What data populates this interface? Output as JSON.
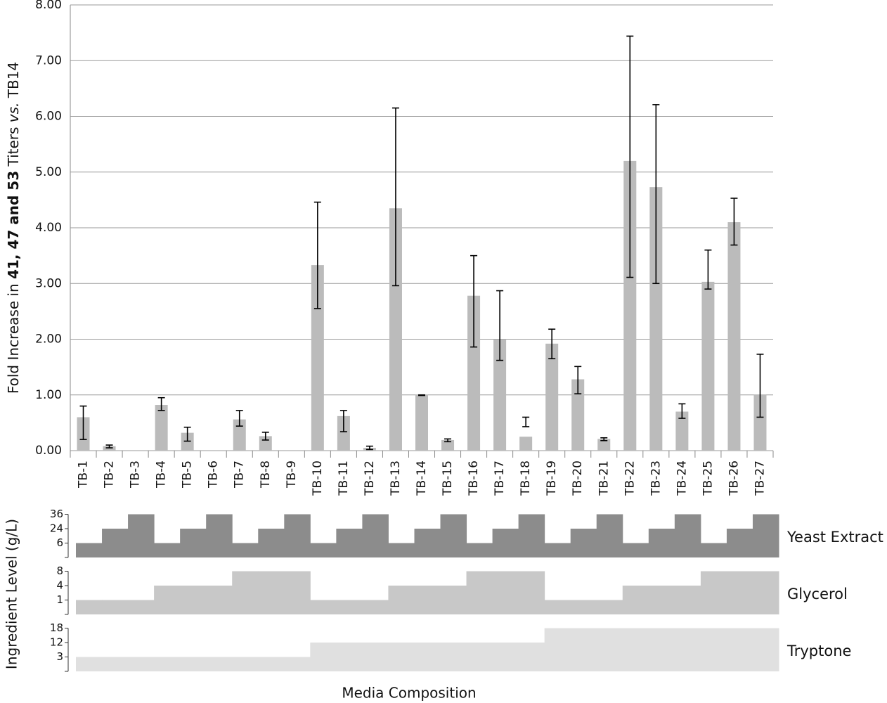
{
  "chart_data": {
    "type": "bar",
    "y_label_parts": [
      "Fold Increase in ",
      "41, 47 and 53",
      " Titers ",
      "vs.",
      " TB14"
    ],
    "x_label": "Media Composition",
    "categories": [
      "TB-1",
      "TB-2",
      "TB-3",
      "TB-4",
      "TB-5",
      "TB-6",
      "TB-7",
      "TB-8",
      "TB-9",
      "TB-10",
      "TB-11",
      "TB-12",
      "TB-13",
      "TB-14",
      "TB-15",
      "TB-16",
      "TB-17",
      "TB-18",
      "TB-19",
      "TB-20",
      "TB-21",
      "TB-22",
      "TB-23",
      "TB-24",
      "TB-25",
      "TB-26",
      "TB-27"
    ],
    "values": [
      0.6,
      0.08,
      0,
      0.82,
      0.32,
      0,
      0.56,
      0.26,
      0,
      3.33,
      0.62,
      0.05,
      4.35,
      1.0,
      0.19,
      2.78,
      2.0,
      0.25,
      1.92,
      1.28,
      0.21,
      5.2,
      4.73,
      0.7,
      3.03,
      4.1,
      1.0
    ],
    "err_low": [
      0.2,
      0.05,
      null,
      0.72,
      0.17,
      null,
      0.44,
      0.19,
      null,
      2.55,
      0.34,
      0.02,
      2.96,
      0.99,
      0.16,
      1.86,
      1.62,
      0.43,
      1.65,
      1.02,
      0.18,
      3.11,
      3.0,
      0.58,
      2.9,
      3.69,
      0.6
    ],
    "err_high": [
      0.8,
      0.1,
      null,
      0.95,
      0.42,
      null,
      0.72,
      0.33,
      null,
      4.46,
      0.72,
      0.08,
      6.15,
      1.0,
      0.21,
      3.5,
      2.87,
      0.6,
      2.18,
      1.51,
      0.23,
      7.44,
      6.21,
      0.84,
      3.6,
      4.53,
      1.73
    ],
    "color": "#bbbbbb",
    "error_color": "#000000",
    "ylim": [
      0,
      8
    ],
    "yticks": [
      {
        "value": 0,
        "label": "0.00"
      },
      {
        "value": 1,
        "label": "1.00"
      },
      {
        "value": 2,
        "label": "2.00"
      },
      {
        "value": 3,
        "label": "3.00"
      },
      {
        "value": 4,
        "label": "4.00"
      },
      {
        "value": 5,
        "label": "5.00"
      },
      {
        "value": 6,
        "label": "6.00"
      },
      {
        "value": 7,
        "label": "7.00"
      },
      {
        "value": 8,
        "label": "8.00"
      }
    ],
    "grid": true,
    "ingredient_label": "Ingredient Level (g/L)",
    "ingredients": [
      {
        "name": "Yeast Extract",
        "color": "#8c8c8c",
        "ticks": [
          6,
          24,
          36
        ],
        "values": [
          6,
          24,
          36,
          6,
          24,
          36,
          6,
          24,
          36,
          6,
          24,
          36,
          6,
          24,
          36,
          6,
          24,
          36,
          6,
          24,
          36,
          6,
          24,
          36,
          6,
          24,
          36
        ]
      },
      {
        "name": "Glycerol",
        "color": "#c8c8c8",
        "ticks": [
          1,
          4,
          8
        ],
        "values": [
          1,
          1,
          1,
          4,
          4,
          4,
          8,
          8,
          8,
          1,
          1,
          1,
          4,
          4,
          4,
          8,
          8,
          8,
          1,
          1,
          1,
          4,
          4,
          4,
          8,
          8,
          8
        ]
      },
      {
        "name": "Tryptone",
        "color": "#e0e0e0",
        "ticks": [
          3,
          12,
          18
        ],
        "values": [
          3,
          3,
          3,
          3,
          3,
          3,
          3,
          3,
          3,
          12,
          12,
          12,
          12,
          12,
          12,
          12,
          12,
          12,
          18,
          18,
          18,
          18,
          18,
          18,
          18,
          18,
          18
        ]
      }
    ]
  }
}
